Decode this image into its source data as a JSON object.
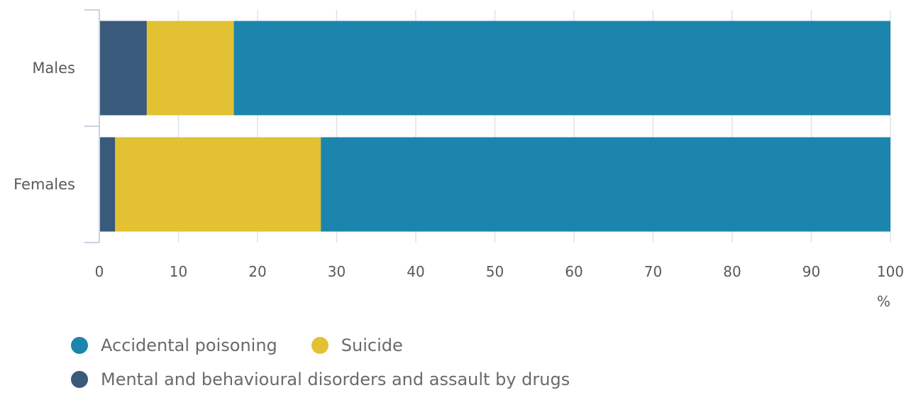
{
  "chart_data": {
    "type": "bar",
    "orientation": "horizontal",
    "stacked": true,
    "categories": [
      "Males",
      "Females"
    ],
    "series": [
      {
        "name": "Mental and behavioural disorders and assault by drugs",
        "values": [
          6,
          2
        ],
        "color": "#3a5a7c"
      },
      {
        "name": "Suicide",
        "values": [
          11,
          26
        ],
        "color": "#e2c133"
      },
      {
        "name": "Accidental poisoning",
        "values": [
          83,
          72
        ],
        "color": "#1b85ad"
      }
    ],
    "xlim": [
      0,
      100
    ],
    "xticks": [
      "0",
      "10",
      "20",
      "30",
      "40",
      "50",
      "60",
      "70",
      "80",
      "90",
      "100"
    ],
    "xlabel": "%",
    "grid": true,
    "legend_position": "bottom-left",
    "legend_rows": [
      [
        "Accidental poisoning",
        "Suicide"
      ],
      [
        "Mental and behavioural disorders and assault by drugs"
      ]
    ]
  }
}
